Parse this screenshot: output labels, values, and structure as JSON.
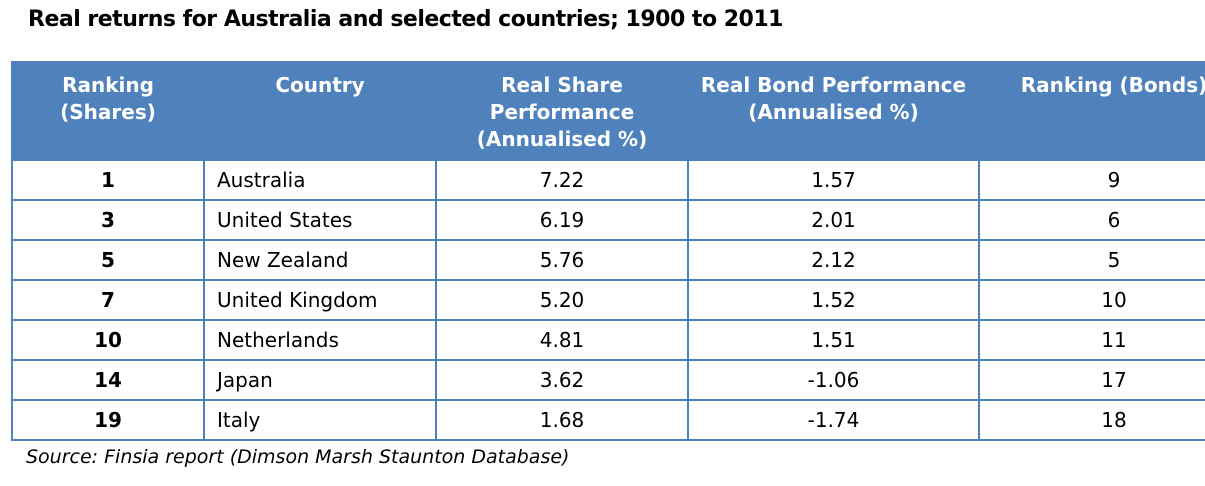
{
  "title": "Real returns for Australia and selected countries; 1900 to 2011",
  "source_note": "Source:  Finsia report (Dimson Marsh Staunton Database)",
  "colors": {
    "header_background": "#4f81bd",
    "table_border": "#4f81bd",
    "header_text": "#ffffff",
    "body_text": "#000000"
  },
  "chart_data": {
    "type": "table",
    "title": "Real returns for Australia and selected countries; 1900 to 2011",
    "source": "Finsia report (Dimson Marsh Staunton Database)",
    "columns": [
      "Ranking (Shares)",
      "Country",
      "Real Share Performance (Annualised %)",
      "Real Bond Performance (Annualised %)",
      "Ranking (Bonds)"
    ],
    "rows": [
      {
        "ranking_shares": "1",
        "country": "Australia",
        "real_share_perf": "7.22",
        "real_bond_perf": "1.57",
        "ranking_bonds": "9"
      },
      {
        "ranking_shares": "3",
        "country": "United States",
        "real_share_perf": "6.19",
        "real_bond_perf": "2.01",
        "ranking_bonds": "6"
      },
      {
        "ranking_shares": "5",
        "country": "New Zealand",
        "real_share_perf": "5.76",
        "real_bond_perf": "2.12",
        "ranking_bonds": "5"
      },
      {
        "ranking_shares": "7",
        "country": "United Kingdom",
        "real_share_perf": "5.20",
        "real_bond_perf": "1.52",
        "ranking_bonds": "10"
      },
      {
        "ranking_shares": "10",
        "country": "Netherlands",
        "real_share_perf": "4.81",
        "real_bond_perf": "1.51",
        "ranking_bonds": "11"
      },
      {
        "ranking_shares": "14",
        "country": "Japan",
        "real_share_perf": "3.62",
        "real_bond_perf": "-1.06",
        "ranking_bonds": "17"
      },
      {
        "ranking_shares": "19",
        "country": "Italy",
        "real_share_perf": "1.68",
        "real_bond_perf": "-1.74",
        "ranking_bonds": "18"
      }
    ]
  }
}
